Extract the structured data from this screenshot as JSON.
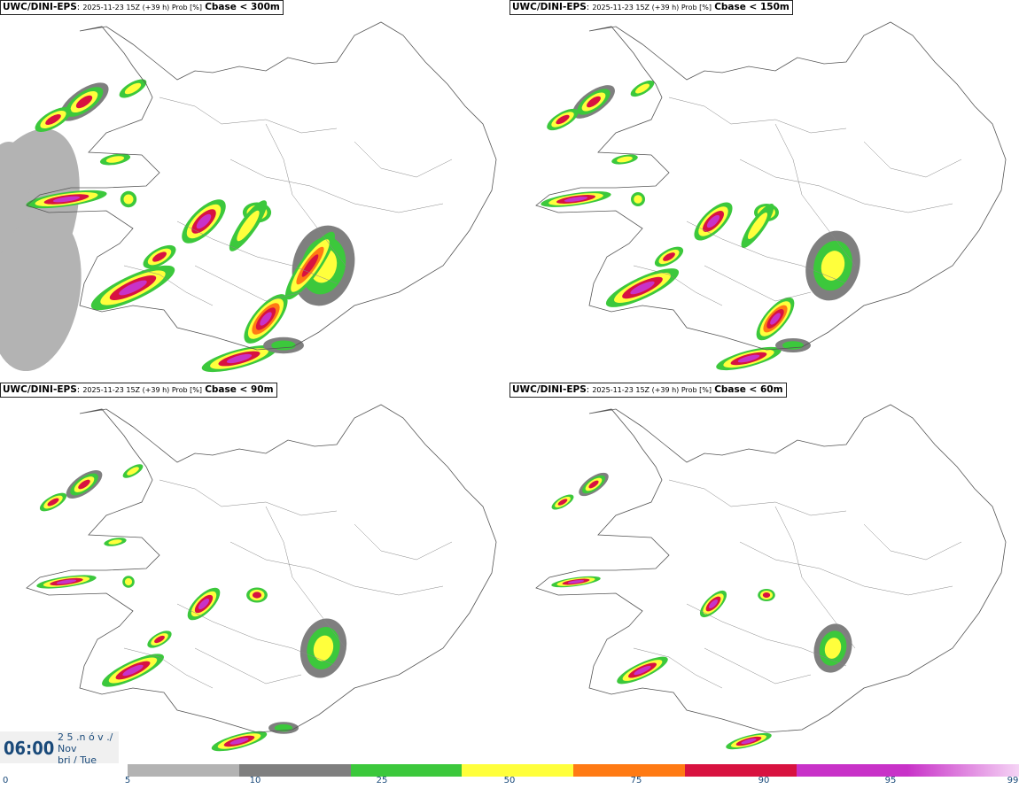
{
  "panels": [
    {
      "model": "UWC/DINI-EPS",
      "meta": "2025-11-23 15Z (+39 h) Prob [%]",
      "threshold": "Cbase < 300m"
    },
    {
      "model": "UWC/DINI-EPS",
      "meta": "2025-11-23 15Z (+39 h) Prob [%]",
      "threshold": "Cbase < 150m"
    },
    {
      "model": "UWC/DINI-EPS",
      "meta": "2025-11-23 15Z (+39 h) Prob [%]",
      "threshold": "Cbase < 90m"
    },
    {
      "model": "UWC/DINI-EPS",
      "meta": "2025-11-23 15Z (+39 h) Prob [%]",
      "threshold": "Cbase < 60m"
    }
  ],
  "valid_time": {
    "time": "06:00",
    "line1": "2 5 .n ó v ./",
    "line2": "Nov",
    "line3": "þri / Tue"
  },
  "colorbar": {
    "ticks": [
      "0",
      "5",
      "10",
      "25",
      "50",
      "75",
      "90",
      "95",
      "99"
    ],
    "colors": [
      "#b3b3b3",
      "#7f7f7f",
      "#3cc83c",
      "#ffff3c",
      "#ff7a14",
      "#d81240",
      "#c832c8",
      "#f5b4f5"
    ]
  }
}
